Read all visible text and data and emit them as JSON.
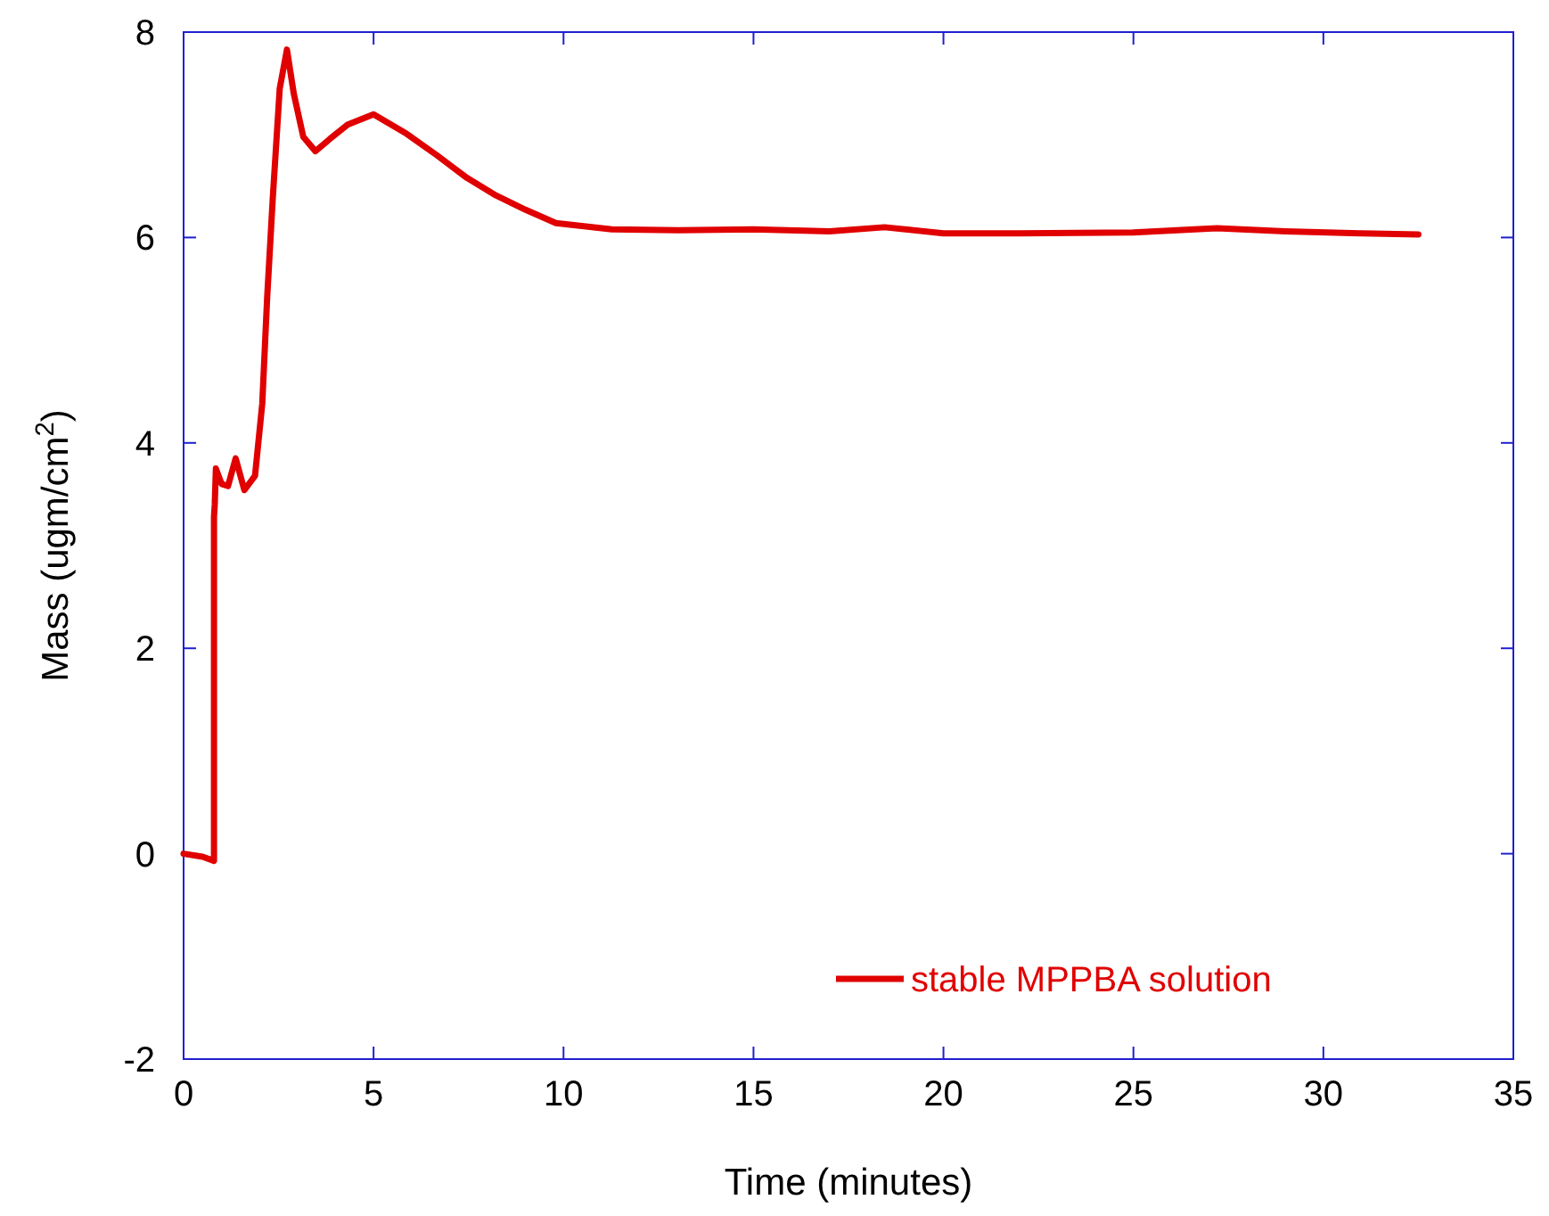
{
  "chart_data": {
    "type": "line",
    "xlabel": "Time (minutes)",
    "ylabel": "Mass (ugm/cm$^{2}$)",
    "xlim": [
      0,
      35
    ],
    "ylim": [
      -2,
      8
    ],
    "xticks": [
      0,
      5,
      10,
      15,
      20,
      25,
      30,
      35
    ],
    "yticks": [
      -2,
      0,
      2,
      4,
      6,
      8
    ],
    "legend": "bottom right",
    "grid": false,
    "series": [
      {
        "name": "stable MPPBA solution",
        "color": "#e00000",
        "x": [
          0,
          0.5,
          0.8,
          0.8,
          0.82,
          0.85,
          1.0,
          1.17,
          1.37,
          1.6,
          1.88,
          2.07,
          2.2,
          2.35,
          2.53,
          2.72,
          2.9,
          3.15,
          3.47,
          3.85,
          4.32,
          5.0,
          5.87,
          6.67,
          7.46,
          8.22,
          9.0,
          9.8,
          11.27,
          13,
          15,
          17,
          18.45,
          20,
          22,
          25,
          27.2,
          29,
          31,
          32.5
        ],
        "values": [
          0,
          -0.03,
          -0.07,
          3.28,
          3.4,
          3.75,
          3.6,
          3.58,
          3.85,
          3.54,
          3.68,
          4.38,
          5.42,
          6.4,
          7.45,
          7.83,
          7.4,
          6.98,
          6.84,
          6.96,
          7.1,
          7.2,
          7.01,
          6.8,
          6.58,
          6.41,
          6.27,
          6.14,
          6.08,
          6.07,
          6.08,
          6.06,
          6.1,
          6.04,
          6.04,
          6.05,
          6.09,
          6.06,
          6.04,
          6.03
        ]
      }
    ]
  }
}
